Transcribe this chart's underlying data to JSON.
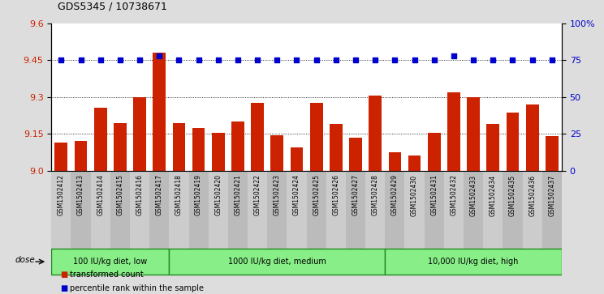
{
  "title": "GDS5345 / 10738671",
  "samples": [
    "GSM1502412",
    "GSM1502413",
    "GSM1502414",
    "GSM1502415",
    "GSM1502416",
    "GSM1502417",
    "GSM1502418",
    "GSM1502419",
    "GSM1502420",
    "GSM1502421",
    "GSM1502422",
    "GSM1502423",
    "GSM1502424",
    "GSM1502425",
    "GSM1502426",
    "GSM1502427",
    "GSM1502428",
    "GSM1502429",
    "GSM1502430",
    "GSM1502431",
    "GSM1502432",
    "GSM1502433",
    "GSM1502434",
    "GSM1502435",
    "GSM1502436",
    "GSM1502437"
  ],
  "bar_values": [
    9.115,
    9.12,
    9.255,
    9.195,
    9.3,
    9.48,
    9.195,
    9.175,
    9.155,
    9.2,
    9.275,
    9.145,
    9.095,
    9.275,
    9.19,
    9.135,
    9.305,
    9.075,
    9.06,
    9.155,
    9.32,
    9.3,
    9.19,
    9.235,
    9.27,
    9.14
  ],
  "percentile_values": [
    75,
    75,
    75,
    75,
    75,
    78,
    75,
    75,
    75,
    75,
    75,
    75,
    75,
    75,
    75,
    75,
    75,
    75,
    75,
    75,
    78,
    75,
    75,
    75,
    75,
    75
  ],
  "bar_color": "#cc2200",
  "dot_color": "#0000cc",
  "ylim_left": [
    9.0,
    9.6
  ],
  "yticks_left": [
    9.0,
    9.15,
    9.3,
    9.45,
    9.6
  ],
  "ylim_right": [
    0,
    100
  ],
  "yticks_right": [
    0,
    25,
    50,
    75,
    100
  ],
  "yticklabels_right": [
    "0",
    "25",
    "50",
    "75",
    "100%"
  ],
  "groups": [
    {
      "label": "100 IU/kg diet, low",
      "start": 0,
      "end": 6
    },
    {
      "label": "1000 IU/kg diet, medium",
      "start": 6,
      "end": 17
    },
    {
      "label": "10,000 IU/kg diet, high",
      "start": 17,
      "end": 26
    }
  ],
  "group_color": "#88ee88",
  "group_border_color": "#228822",
  "dose_label": "dose",
  "legend_bar_label": "transformed count",
  "legend_dot_label": "percentile rank within the sample",
  "background_color": "#dddddd",
  "plot_bg_color": "#ffffff",
  "tick_bg_colors": [
    "#cccccc",
    "#bbbbbb"
  ]
}
